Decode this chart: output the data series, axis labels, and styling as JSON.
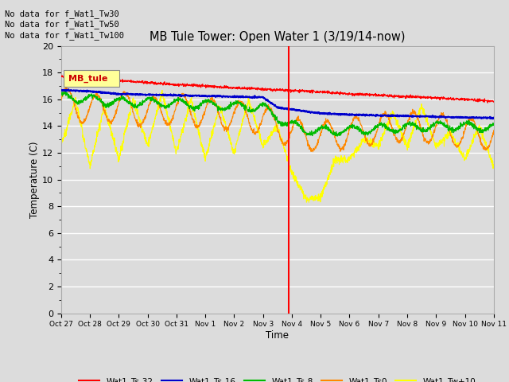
{
  "title": "MB Tule Tower: Open Water 1 (3/19/14-now)",
  "xlabel": "Time",
  "ylabel": "Temperature (C)",
  "ylim": [
    0,
    20
  ],
  "yticks": [
    0,
    2,
    4,
    6,
    8,
    10,
    12,
    14,
    16,
    18,
    20
  ],
  "bg_color": "#dcdcdc",
  "no_data_lines": [
    "No data for f_Wat1_Tw30",
    "No data for f_Wat1_Tw50",
    "No data for f_Wat1_Tw100"
  ],
  "legend_box_label": "MB_tule",
  "legend_box_color": "#ffff99",
  "legend_box_text_color": "#cc0000",
  "red_color": "#ff0000",
  "blue_color": "#0000cc",
  "green_color": "#00bb00",
  "orange_color": "#ff8800",
  "yellow_color": "#ffff00",
  "x_tick_labels": [
    "Oct 27",
    "Oct 28",
    "Oct 29",
    "Oct 30",
    "Oct 31",
    "Nov 1",
    "Nov 2",
    "Nov 3",
    "Nov 4",
    "Nov 5",
    "Nov 6",
    "Nov 7",
    "Nov 8",
    "Nov 9",
    "Nov 10",
    "Nov 11"
  ],
  "marker_day": 7.9,
  "num_points": 2000
}
